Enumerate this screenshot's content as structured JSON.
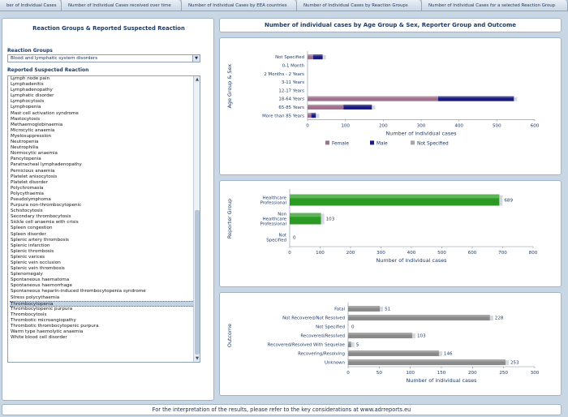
{
  "tabs": [
    "ber of Individual Cases",
    "Number of Individual Cases received over time",
    "Number of Individual Cases by EEA countries",
    "Number of Individual Cases by Reaction Groups",
    "Number of Individual Cases for a selected Reaction Group"
  ],
  "left_panel": {
    "title": "Reaction Groups & Reported Suspected Reaction",
    "reaction_groups_label": "Reaction Groups",
    "reaction_groups_value": "Blood and lymphatic system disorders",
    "reactions_label": "Reported Suspected Reaction",
    "reactions": [
      "Lymph node pain",
      "Lymphadenitis",
      "Lymphadenopathy",
      "Lymphatic disorder",
      "Lymphocytosis",
      "Lymphopenia",
      "Mast cell activation syndrome",
      "Mastocytosis",
      "Methaemoglobinaemia",
      "Microcytic anaemia",
      "Myelosuppression",
      "Neutropenia",
      "Neutrophilia",
      "Normocytic anaemia",
      "Pancytopenia",
      "Paratracheal lymphadenopathy",
      "Pernicious anaemia",
      "Platelet anisocytosis",
      "Platelet disorder",
      "Polychromasia",
      "Polycythaemia",
      "Pseudolymphoma",
      "Purpura non-thrombocytopenic",
      "Schistocytosis",
      "Secondary thrombocytosis",
      "Sickle cell anaemia with crisis",
      "Spleen congestion",
      "Spleen disorder",
      "Splenic artery thrombosis",
      "Splenic infarction",
      "Splenic thrombosis",
      "Splenic varices",
      "Splenic vein occlusion",
      "Splenic vein thrombosis",
      "Splenomegaly",
      "Spontaneous haematoma",
      "Spontaneous haemorrhage",
      "Spontaneous heparin-induced thrombocytopenia syndrome",
      "Stress polycythaemia",
      "Thrombocytopenia",
      "Thrombocytopenic purpura",
      "Thrombocytosis",
      "Thrombotic microangiopathy",
      "Thrombotic thrombocytopenic purpura",
      "Warm type haemolytic anaemia",
      "White blood cell disorder"
    ],
    "selected_index": 39
  },
  "chart_title": "Number of individual cases by Age Group & Sex, Reporter Group and Outcome",
  "chart_data": [
    {
      "type": "bar",
      "orientation": "horizontal",
      "stacked": true,
      "ylabel": "Age Group & Sex",
      "xlabel": "Number of individual cases",
      "categories": [
        "Not Specified",
        "0-1 Month",
        "2 Months - 2 Years",
        "3-11 Years",
        "12-17 Years",
        "18-64 Years",
        "65-85 Years",
        "More than 85 Years"
      ],
      "series": [
        {
          "name": "Female",
          "color": "#a0708c",
          "values": [
            15,
            0,
            0,
            0,
            0,
            345,
            95,
            10
          ]
        },
        {
          "name": "Male",
          "color": "#1a1a80",
          "values": [
            25,
            0,
            0,
            0,
            0,
            200,
            75,
            12
          ]
        },
        {
          "name": "Not Specified",
          "color": "#a6a6a6",
          "values": [
            0,
            0,
            0,
            0,
            0,
            0,
            0,
            0
          ]
        }
      ],
      "xticks": [
        0,
        100,
        200,
        300,
        400,
        500,
        600
      ],
      "xlim": [
        0,
        600
      ],
      "legend": "bottom"
    },
    {
      "type": "bar",
      "orientation": "horizontal",
      "ylabel": "Reporter Group",
      "xlabel": "Number of individual cases",
      "categories": [
        "Healthcare Professional",
        "Non Healthcare Professional",
        "Not Specified"
      ],
      "values": [
        689,
        103,
        0
      ],
      "labels": [
        "689",
        "103",
        "0"
      ],
      "color": "#2a9a22",
      "xticks": [
        0,
        100,
        200,
        300,
        400,
        500,
        600,
        700,
        800
      ],
      "xlim": [
        0,
        800
      ]
    },
    {
      "type": "bar",
      "orientation": "horizontal",
      "ylabel": "Outcome",
      "xlabel": "Number of individual cases",
      "categories": [
        "Fatal",
        "Not Recovered/Not Resolved",
        "Not Specified",
        "Recovered/Resolved",
        "Recovered/Resolved With Sequelae",
        "Recovering/Resolving",
        "Unknown"
      ],
      "values": [
        51,
        228,
        0,
        103,
        5,
        146,
        253
      ],
      "labels": [
        "51",
        "228",
        "0",
        "103",
        "5",
        "146",
        "253"
      ],
      "color": "#8a8a8a",
      "xticks": [
        0,
        50,
        100,
        150,
        200,
        250,
        300
      ],
      "xlim": [
        0,
        300
      ]
    }
  ],
  "footer": "For the interpretation of the results, please refer to the key considerations at www.adrreports.eu"
}
